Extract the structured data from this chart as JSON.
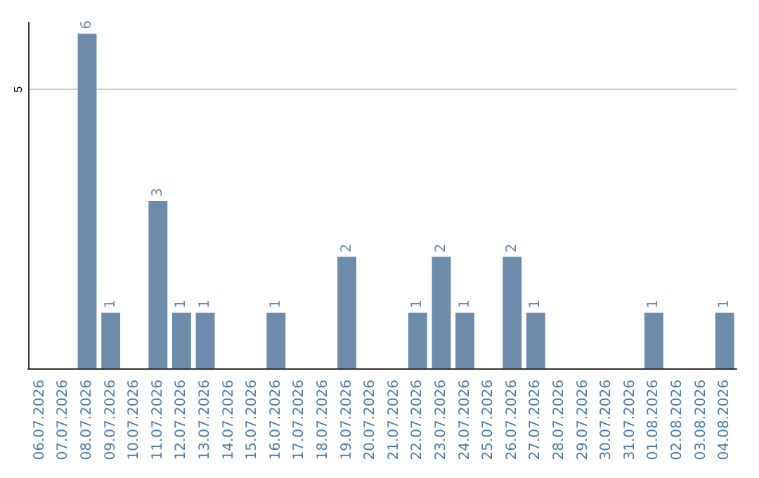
{
  "chart_data": {
    "type": "bar",
    "categories": [
      "06.07.2026",
      "07.07.2026",
      "08.07.2026",
      "09.07.2026",
      "10.07.2026",
      "11.07.2026",
      "12.07.2026",
      "13.07.2026",
      "14.07.2026",
      "15.07.2026",
      "16.07.2026",
      "17.07.2026",
      "18.07.2026",
      "19.07.2026",
      "20.07.2026",
      "21.07.2026",
      "22.07.2026",
      "23.07.2026",
      "24.07.2026",
      "25.07.2026",
      "26.07.2026",
      "27.07.2026",
      "28.07.2026",
      "29.07.2026",
      "30.07.2026",
      "31.07.2026",
      "01.08.2026",
      "02.08.2026",
      "03.08.2026",
      "04.08.2026"
    ],
    "values": [
      null,
      null,
      6,
      1,
      null,
      3,
      1,
      1,
      null,
      null,
      1,
      null,
      null,
      2,
      null,
      null,
      1,
      2,
      1,
      null,
      2,
      1,
      null,
      null,
      null,
      null,
      1,
      null,
      null,
      1
    ],
    "color": "#6d8cab",
    "ylim": [
      0,
      6.2
    ],
    "yticks": [
      5
    ],
    "grid": "y",
    "data_labels": true
  }
}
